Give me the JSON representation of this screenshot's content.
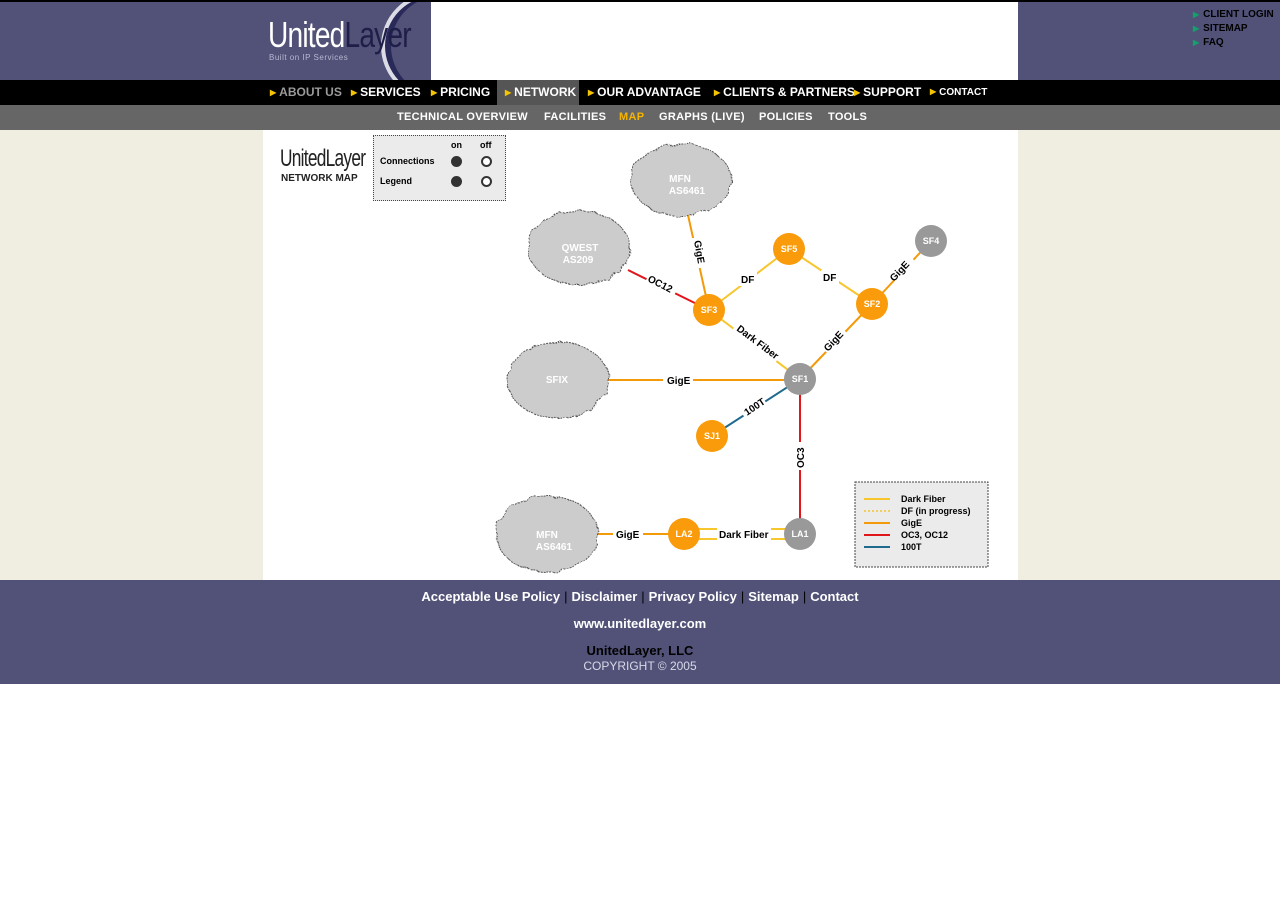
{
  "header": {
    "logo_united": "United",
    "logo_layer": "Layer",
    "tagline": "Built on IP Services",
    "top_links": [
      "CLIENT LOGIN",
      "SITEMAP",
      "FAQ"
    ]
  },
  "nav": {
    "items": [
      "ABOUT US",
      "SERVICES",
      "PRICING",
      "NETWORK",
      "OUR ADVANTAGE",
      "CLIENTS & PARTNERS",
      "SUPPORT",
      "CONTACT"
    ],
    "active": "NETWORK"
  },
  "subnav": {
    "items": [
      "TECHNICAL OVERVIEW",
      "FACILITIES",
      "MAP",
      "GRAPHS (LIVE)",
      "POLICIES",
      "TOOLS"
    ],
    "active": "MAP"
  },
  "map": {
    "logo_word": "UnitedLayer",
    "logo_sub": "NETWORK MAP",
    "toggle": {
      "on": "on",
      "off": "off",
      "connections": "Connections",
      "legend": "Legend",
      "connections_on": true,
      "legend_on": true
    },
    "clouds": {
      "mfn_top": [
        "MFN",
        "AS6461"
      ],
      "qwest": [
        "QWEST",
        "AS209"
      ],
      "sfix": "SFIX",
      "mfn_bottom": [
        "MFN",
        "AS6461"
      ]
    },
    "nodes": {
      "sf5": "SF5",
      "sf4": "SF4",
      "sf3": "SF3",
      "sf2": "SF2",
      "sf1": "SF1",
      "sj1": "SJ1",
      "la2": "LA2",
      "la1": "LA1"
    },
    "link_labels": {
      "mfn_sf3": "GigE",
      "qwest_sf3": "OC12",
      "sf3_sf5": "DF",
      "sf5_sf2": "DF",
      "sf2_sf4": "GigE",
      "sf3_sf1": "Dark Fiber",
      "sf2_sf1": "GigE",
      "sfix_sf1": "GigE",
      "sj1_sf1": "100T",
      "sf1_la1": "OC3",
      "mfn_la2": "GigE",
      "la2_la1": "Dark Fiber"
    },
    "legend": [
      "Dark Fiber",
      "DF (in progress)",
      "GigE",
      "OC3, OC12",
      "100T"
    ],
    "colors": {
      "dark_fiber": "#f7c52c",
      "gige": "#f39a0b",
      "oc": "#e0161b",
      "t100": "#1f6b8f",
      "node_orange": "#f99b0a",
      "node_gray": "#999999",
      "cloud": "#cccccc"
    }
  },
  "footer": {
    "links": [
      "Acceptable Use Policy",
      "Disclaimer",
      "Privacy Policy",
      "Sitemap",
      "Contact"
    ],
    "url": "www.unitedlayer.com",
    "company": "UnitedLayer, LLC",
    "copyright": "COPYRIGHT © 2005"
  }
}
